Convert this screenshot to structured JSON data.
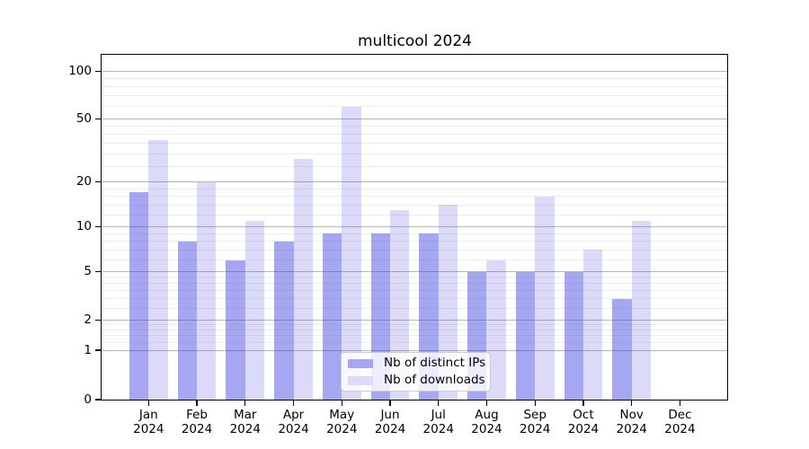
{
  "title": "multicool 2024",
  "chart_data": {
    "type": "bar",
    "title": "multicool 2024",
    "xlabel": "",
    "ylabel": "",
    "yscale": "log (symmetric, 0 shown at axis)",
    "categories": [
      "Jan",
      "Feb",
      "Mar",
      "Apr",
      "May",
      "Jun",
      "Jul",
      "Aug",
      "Sep",
      "Oct",
      "Nov",
      "Dec"
    ],
    "category_year": "2024",
    "series": [
      {
        "name": "Nb of distinct IPs",
        "color": "#a6a6f2",
        "values": [
          17,
          8,
          6,
          8,
          9,
          9,
          9,
          5,
          5,
          5,
          3,
          0
        ]
      },
      {
        "name": "Nb of downloads",
        "color": "#dbdbf9",
        "values": [
          37,
          20,
          11,
          28,
          60,
          13,
          14,
          6,
          16,
          7,
          11,
          0
        ]
      }
    ],
    "ytick_labels": [
      "0",
      "1",
      "2",
      "5",
      "10",
      "20",
      "50",
      "100"
    ],
    "ytick_values": [
      0,
      1,
      2,
      5,
      10,
      20,
      50,
      100
    ],
    "minor_grid_values": [
      1.2,
      1.4,
      1.6,
      1.8,
      2.5,
      3,
      3.5,
      4,
      4.5,
      6,
      7,
      8,
      9,
      12,
      14,
      16,
      18,
      25,
      30,
      35,
      40,
      45,
      60,
      70,
      80,
      90
    ],
    "ylim": [
      0,
      140
    ],
    "grid": true,
    "legend_position": "lower center"
  }
}
